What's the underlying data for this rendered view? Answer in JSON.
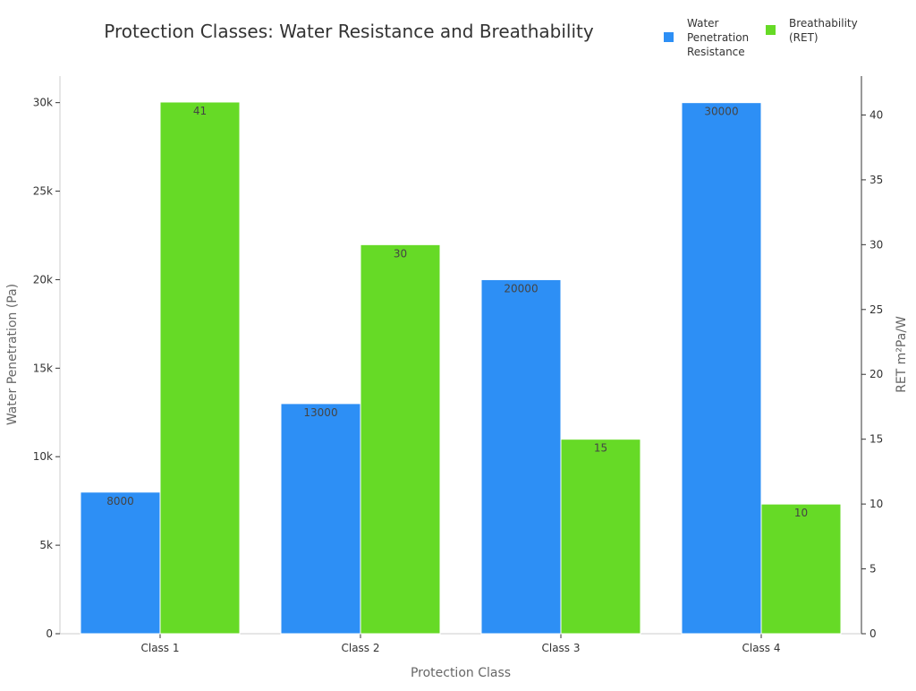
{
  "chart_data": {
    "type": "bar",
    "title": "Protection Classes: Water Resistance and Breathability",
    "xlabel": "Protection Class",
    "ylabel": "Water Penetration (Pa)",
    "y2label": "RET m²Pa/W",
    "categories": [
      "Class 1",
      "Class 2",
      "Class 3",
      "Class 4"
    ],
    "series": [
      {
        "name": "Water Penetration Resistance",
        "axis": "left",
        "color": "#2d8ff5",
        "values": [
          8000,
          13000,
          20000,
          30000
        ],
        "labels": [
          "8000",
          "13000",
          "20000",
          "30000"
        ]
      },
      {
        "name": "Breathability (RET)",
        "axis": "right",
        "color": "#66da26",
        "values": [
          41,
          30,
          15,
          10
        ],
        "labels": [
          "41",
          "30",
          "15",
          "10"
        ]
      }
    ],
    "legend_lines": [
      [
        "Water",
        "Penetration",
        "Resistance"
      ],
      [
        "Breathability",
        "(RET)"
      ]
    ],
    "ylim": [
      0,
      31500
    ],
    "y2lim": [
      0,
      43
    ],
    "yticks": [
      0,
      5000,
      10000,
      15000,
      20000,
      25000,
      30000
    ],
    "yticklabels": [
      "0",
      "5k",
      "10k",
      "15k",
      "20k",
      "25k",
      "30k"
    ],
    "y2ticks": [
      0,
      5,
      10,
      15,
      20,
      25,
      30,
      35,
      40
    ],
    "y2ticklabels": [
      "0",
      "5",
      "10",
      "15",
      "20",
      "25",
      "30",
      "35",
      "40"
    ],
    "grid": false,
    "legend_position": "top-right"
  }
}
